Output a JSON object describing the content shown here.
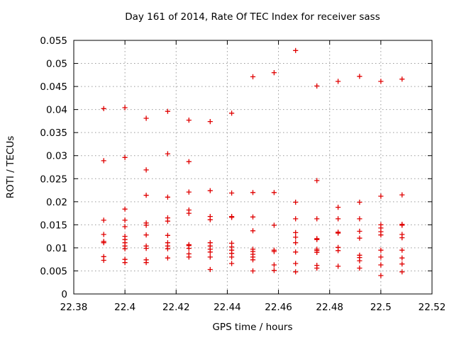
{
  "window": {
    "title": "Day 161 of 2014, Rate Of TEC Index for receiver sass"
  },
  "colors": {
    "marker": "#e00000",
    "grid": "#9a9a9a",
    "axis": "#000000",
    "background": "#ffffff"
  },
  "chart_data": {
    "type": "scatter",
    "title": "Day 161 of 2014, Rate Of TEC Index for receiver sass",
    "xlabel": "GPS time / hours",
    "ylabel": "ROTI / TECUs",
    "xlim": [
      22.38,
      22.52
    ],
    "ylim": [
      0,
      0.055
    ],
    "xticks": [
      22.38,
      22.4,
      22.42,
      22.44,
      22.46,
      22.48,
      22.5,
      22.52
    ],
    "xtick_labels": [
      "22.38",
      "22.4",
      "22.42",
      "22.44",
      "22.46",
      "22.48",
      "22.5",
      "22.52"
    ],
    "yticks": [
      0,
      0.005,
      0.01,
      0.015,
      0.02,
      0.025,
      0.03,
      0.035,
      0.04,
      0.045,
      0.05,
      0.055
    ],
    "ytick_labels": [
      "0",
      "0.005",
      "0.01",
      "0.015",
      "0.02",
      "0.025",
      "0.03",
      "0.035",
      "0.04",
      "0.045",
      "0.05",
      "0.055"
    ],
    "grid": true,
    "grid_style": "dotted",
    "legend": "none",
    "marker": "plus",
    "marker_color": "#e00000",
    "points_by_time": [
      {
        "t": 22.3917,
        "roti": [
          0.0402,
          0.0289,
          0.016,
          0.0129,
          0.0114,
          0.0111,
          0.0081,
          0.0073
        ]
      },
      {
        "t": 22.4,
        "roti": [
          0.0404,
          0.0296,
          0.0184,
          0.016,
          0.0146,
          0.0125,
          0.0118,
          0.0111,
          0.0104,
          0.0098,
          0.0075,
          0.0068
        ]
      },
      {
        "t": 22.4083,
        "roti": [
          0.0381,
          0.0269,
          0.0214,
          0.0154,
          0.0149,
          0.0128,
          0.0104,
          0.0099,
          0.0074,
          0.0068
        ]
      },
      {
        "t": 22.4167,
        "roti": [
          0.0396,
          0.0304,
          0.021,
          0.0165,
          0.0158,
          0.0127,
          0.0111,
          0.0104,
          0.0098,
          0.0078
        ]
      },
      {
        "t": 22.425,
        "roti": [
          0.0377,
          0.0287,
          0.0221,
          0.0182,
          0.0175,
          0.0107,
          0.0105,
          0.0099,
          0.0087,
          0.008
        ]
      },
      {
        "t": 22.4333,
        "roti": [
          0.0374,
          0.0224,
          0.0168,
          0.0161,
          0.0111,
          0.0104,
          0.0097,
          0.0091,
          0.008,
          0.0053
        ]
      },
      {
        "t": 22.4417,
        "roti": [
          0.0392,
          0.0219,
          0.0168,
          0.0166,
          0.011,
          0.0102,
          0.0095,
          0.0088,
          0.008,
          0.0066
        ]
      },
      {
        "t": 22.45,
        "roti": [
          0.0471,
          0.022,
          0.0167,
          0.0137,
          0.0097,
          0.0092,
          0.0086,
          0.008,
          0.0074,
          0.005
        ]
      },
      {
        "t": 22.4583,
        "roti": [
          0.048,
          0.022,
          0.0149,
          0.0095,
          0.0092,
          0.0063,
          0.0051
        ]
      },
      {
        "t": 22.4667,
        "roti": [
          0.0528,
          0.0199,
          0.0163,
          0.0133,
          0.0123,
          0.0111,
          0.0091,
          0.0066,
          0.0048
        ]
      },
      {
        "t": 22.475,
        "roti": [
          0.0451,
          0.0246,
          0.0163,
          0.012,
          0.0118,
          0.0097,
          0.0094,
          0.009,
          0.0062,
          0.0056
        ]
      },
      {
        "t": 22.4833,
        "roti": [
          0.0461,
          0.0188,
          0.0163,
          0.0134,
          0.0132,
          0.0101,
          0.0094,
          0.006
        ]
      },
      {
        "t": 22.4917,
        "roti": [
          0.0472,
          0.0199,
          0.0163,
          0.0136,
          0.0121,
          0.0084,
          0.0079,
          0.0072,
          0.0056
        ]
      },
      {
        "t": 22.5,
        "roti": [
          0.0461,
          0.0212,
          0.015,
          0.0143,
          0.0135,
          0.0128,
          0.0095,
          0.008,
          0.0063,
          0.004
        ]
      },
      {
        "t": 22.5083,
        "roti": [
          0.0466,
          0.0215,
          0.0151,
          0.0149,
          0.0129,
          0.0122,
          0.0095,
          0.0078,
          0.0065,
          0.0048
        ]
      }
    ]
  }
}
